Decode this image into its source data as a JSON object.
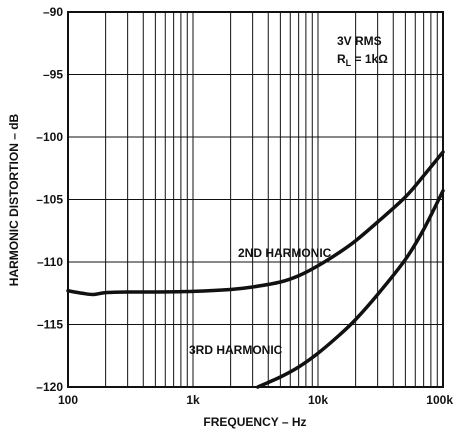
{
  "chart_data": {
    "type": "line",
    "xlabel": "FREQUENCY – Hz",
    "ylabel": "HARMONIC DISTORTION – dB",
    "x_scale": "log",
    "xlim": [
      100,
      100000
    ],
    "ylim": [
      -120,
      -90
    ],
    "x_ticks": [
      {
        "value": 100,
        "label": "100"
      },
      {
        "value": 1000,
        "label": "1k"
      },
      {
        "value": 10000,
        "label": "10k"
      },
      {
        "value": 100000,
        "label": "100k"
      }
    ],
    "y_ticks": [
      {
        "value": -90,
        "label": "–90"
      },
      {
        "value": -95,
        "label": "–95"
      },
      {
        "value": -100,
        "label": "–100"
      },
      {
        "value": -105,
        "label": "–105"
      },
      {
        "value": -110,
        "label": "–110"
      },
      {
        "value": -115,
        "label": "–115"
      },
      {
        "value": -120,
        "label": "–120"
      }
    ],
    "grid": true,
    "conditions": {
      "line1": "3V RMS",
      "line2_prefix": "R",
      "line2_sub": "L",
      "line2_suffix": " = 1kΩ"
    },
    "series": [
      {
        "name": "2ND HARMONIC",
        "x": [
          100,
          130,
          160,
          200,
          300,
          500,
          1000,
          2000,
          3000,
          5000,
          7000,
          10000,
          15000,
          20000,
          30000,
          50000,
          70000,
          100000
        ],
        "y": [
          -112.3,
          -112.5,
          -112.6,
          -112.45,
          -112.4,
          -112.4,
          -112.35,
          -112.2,
          -112.0,
          -111.6,
          -111.1,
          -110.3,
          -109.2,
          -108.3,
          -106.8,
          -104.8,
          -103.1,
          -101.2
        ]
      },
      {
        "name": "3RD HARMONIC",
        "x": [
          3300,
          5000,
          7000,
          10000,
          15000,
          20000,
          30000,
          50000,
          70000,
          100000
        ],
        "y": [
          -120.0,
          -119.2,
          -118.4,
          -117.3,
          -115.8,
          -114.6,
          -112.6,
          -109.8,
          -107.4,
          -104.3
        ]
      }
    ],
    "annotations": [
      {
        "text": "2ND HARMONIC"
      },
      {
        "text": "3RD HARMONIC"
      }
    ]
  }
}
